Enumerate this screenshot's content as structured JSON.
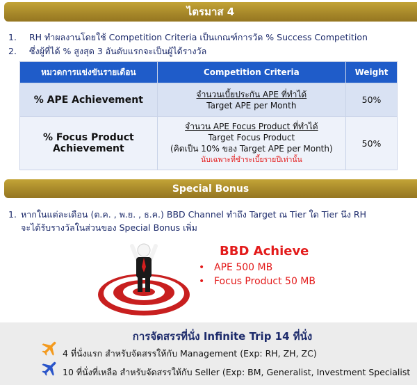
{
  "quarter_banner": "ไตรมาส 4",
  "rules": [
    {
      "num": "1.",
      "text": "RH ทำผลงานโดยใช้ Competition Criteria เป็นเกณฑ์การวัด % Success Competition"
    },
    {
      "num": "2.",
      "text": "ซึ่งผู้ที่ได้ % สูงสุด 3 อันดับแรกจะเป็นผู้ได้รางวัล"
    }
  ],
  "table": {
    "headers": [
      "หมวดการแข่งขันรายเดือน",
      "Competition Criteria",
      "Weight"
    ],
    "rows": [
      {
        "category": "% APE Achievement",
        "criteria_top": "จำนวนเบี้ยประกัน APE ที่ทำได้",
        "criteria_bottom": "Target APE per Month",
        "weight": "50%"
      },
      {
        "category_line1": "% Focus Product",
        "category_line2": "Achievement",
        "criteria_top": "จำนวน APE Focus Product ที่ทำได้",
        "criteria_bottom": "Target Focus Product",
        "criteria_note": "(คิดเป็น 10% ของ Target APE per Month)",
        "criteria_red": "นับเฉพาะที่ชำระเบี้ยรายปีเท่านั้น",
        "weight": "50%"
      }
    ]
  },
  "bonus_banner": "Special Bonus",
  "bonus_rule": {
    "num": "1.",
    "line1": "หากในแต่ละเดือน (ต.ค. , พ.ย. , ธ.ค.) BBD Channel ทำถึง Target ณ Tier ใด Tier นึง RH",
    "line2": "จะได้รับรางวัลในส่วนของ Special Bonus เพิ่ม"
  },
  "achieve": {
    "title": "BBD Achieve",
    "items": [
      "APE 500 MB",
      "Focus Product 50 MB"
    ]
  },
  "trip": {
    "title": "การจัดสรรที่นั่ง Infinite Trip 14 ที่นั่ง",
    "rows": [
      "4 ที่นั่งแรก สำหรับจัดสรรให้กับ Management (Exp: RH, ZH, ZC)",
      "10 ที่นั่งที่เหลือ สำหรับจัดสรรให้กับ Seller (Exp: BM, Generalist, Investment Specialist"
    ]
  },
  "colors": {
    "gold": "#a8892a",
    "header_blue": "#1f5cc9",
    "red": "#e31b1b",
    "plane_orange": "#f39a1e",
    "plane_blue": "#2a55c9"
  }
}
